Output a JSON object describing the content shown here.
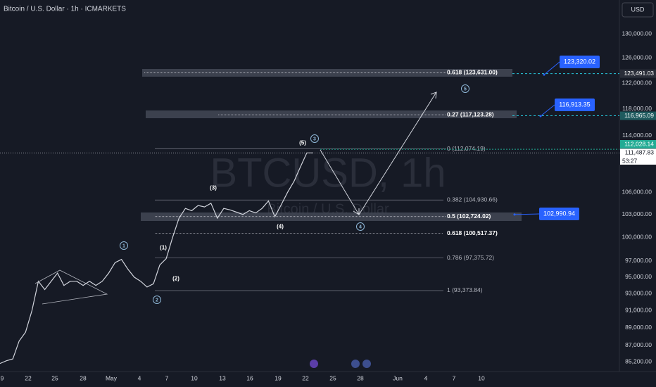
{
  "header": {
    "title": "Bitcoin / U.S. Dollar · 1h · ICMARKETS",
    "currency": "USD"
  },
  "watermark": {
    "symbol": "BTCUSD, 1h",
    "name": "Bitcoin / U.S. Dollar"
  },
  "price_axis": {
    "log": true,
    "ticks": [
      {
        "value": 130000,
        "label": "130,000.00"
      },
      {
        "value": 126000,
        "label": "126,000.00"
      },
      {
        "value": 122000,
        "label": "122,000.00"
      },
      {
        "value": 118000,
        "label": "118,000.00"
      },
      {
        "value": 114000,
        "label": "114,000.00"
      },
      {
        "value": 106000,
        "label": "106,000.00"
      },
      {
        "value": 103000,
        "label": "103,000.00"
      },
      {
        "value": 100000,
        "label": "100,000.00"
      },
      {
        "value": 97000,
        "label": "97,000.00"
      },
      {
        "value": 95000,
        "label": "95,000.00"
      },
      {
        "value": 93000,
        "label": "93,000.00"
      },
      {
        "value": 91000,
        "label": "91,000.00"
      },
      {
        "value": 89000,
        "label": "89,000.00"
      },
      {
        "value": 87000,
        "label": "87,000.00"
      },
      {
        "value": 85200,
        "label": "85,200.00"
      }
    ]
  },
  "dates": [
    "9",
    "22",
    "25",
    "28",
    "May",
    "4",
    "7",
    "10",
    "13",
    "16",
    "19",
    "22",
    "25",
    "28",
    "Jun",
    "4",
    "7",
    "10"
  ],
  "price_series": [
    85000,
    85300,
    85500,
    87500,
    88500,
    91000,
    94500,
    93500,
    94500,
    95500,
    94000,
    94500,
    94500,
    94000,
    94500,
    94000,
    94500,
    95500,
    96800,
    97200,
    96000,
    95000,
    94500,
    93800,
    94200,
    96500,
    97300,
    100000,
    102500,
    103800,
    103500,
    104200,
    104000,
    104500,
    102500,
    103800,
    103600,
    103300,
    103000,
    103500,
    103200,
    103800,
    104800,
    102700,
    104300,
    106000,
    107500,
    109500,
    111500,
    111500
  ],
  "fib_levels": [
    {
      "label": "0.618 (123,631.00)",
      "price": 123631
    },
    {
      "label": "0.27 (117,123.28)",
      "price": 117123.28
    },
    {
      "label": "0 (112,074.19)",
      "price": 112074.19
    },
    {
      "label": "0.382 (104,930.66)",
      "price": 104930.66
    },
    {
      "label": "0.5 (102,724.02)",
      "price": 102724.02
    },
    {
      "label": "0.618 (100,517.37)",
      "price": 100517.37
    },
    {
      "label": "0.786 (97,375.72)",
      "price": 97375.72
    },
    {
      "label": "1 (93,373.84)",
      "price": 93373.84
    }
  ],
  "callouts": [
    {
      "label": "123,320.02",
      "price": 123320.02
    },
    {
      "label": "116,913.35",
      "price": 116913.35
    },
    {
      "label": "102,990.94",
      "price": 102990.94
    }
  ],
  "axis_badges": [
    {
      "label": "123,491.03",
      "price": 123491.03
    },
    {
      "label": "116,965.09",
      "price": 116965.09
    },
    {
      "label": "112,028.14",
      "price": 112028.14
    },
    {
      "label": "111,487.83",
      "price": 111487.83
    }
  ],
  "countdown": "53:27",
  "wave_labels": [
    "1",
    "(1)",
    "(2)",
    "2",
    "(3)",
    "(4)",
    "(5)",
    "3",
    "4",
    "5"
  ]
}
